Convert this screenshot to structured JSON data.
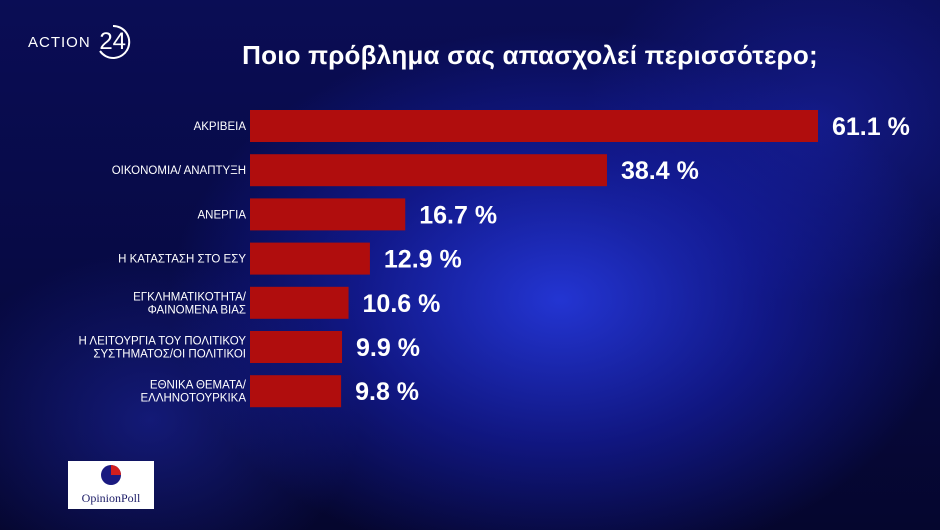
{
  "header": {
    "logo_word": "ACTION",
    "logo_number": "24"
  },
  "chart_data": {
    "type": "bar",
    "orientation": "horizontal",
    "title": "Ποιο πρόβλημα σας απασχολεί περισσότερο;",
    "categories": [
      [
        "ΑΚΡΙΒΕΙΑ"
      ],
      [
        "ΟΙΚΟΝΟΜΙΑ/ ΑΝΑΠΤΥΞΗ"
      ],
      [
        "ΑΝΕΡΓΙΑ"
      ],
      [
        "Η ΚΑΤΑΣΤΑΣΗ ΣΤΟ ΕΣΥ"
      ],
      [
        "ΕΓΚΛΗΜΑΤΙΚΟΤΗΤΑ/",
        "ΦΑΙΝΟΜΕΝΑ ΒΙΑΣ"
      ],
      [
        "Η ΛΕΙΤΟΥΡΓΙΑ ΤΟΥ ΠΟΛΙΤΙΚΟΥ",
        "ΣΥΣΤΗΜΑΤΟΣ/ΟΙ ΠΟΛΙΤΙΚΟΙ"
      ],
      [
        "ΕΘΝΙΚΑ ΘΕΜΑΤΑ/",
        "ΕΛΛΗΝΟΤΟΥΡΚΙΚΑ"
      ]
    ],
    "values": [
      61.1,
      38.4,
      16.7,
      12.9,
      10.6,
      9.9,
      9.8
    ],
    "value_labels": [
      "61.1 %",
      "38.4 %",
      "16.7 %",
      "12.9 %",
      "10.6 %",
      "9.9 %",
      "9.8 %"
    ],
    "bar_color": "#b00d0d",
    "grid": false,
    "legend": "none"
  },
  "footer": {
    "pollster": "OpinionPoll",
    "pollster_colors": [
      "#1a1a80",
      "#d21e1e"
    ]
  }
}
